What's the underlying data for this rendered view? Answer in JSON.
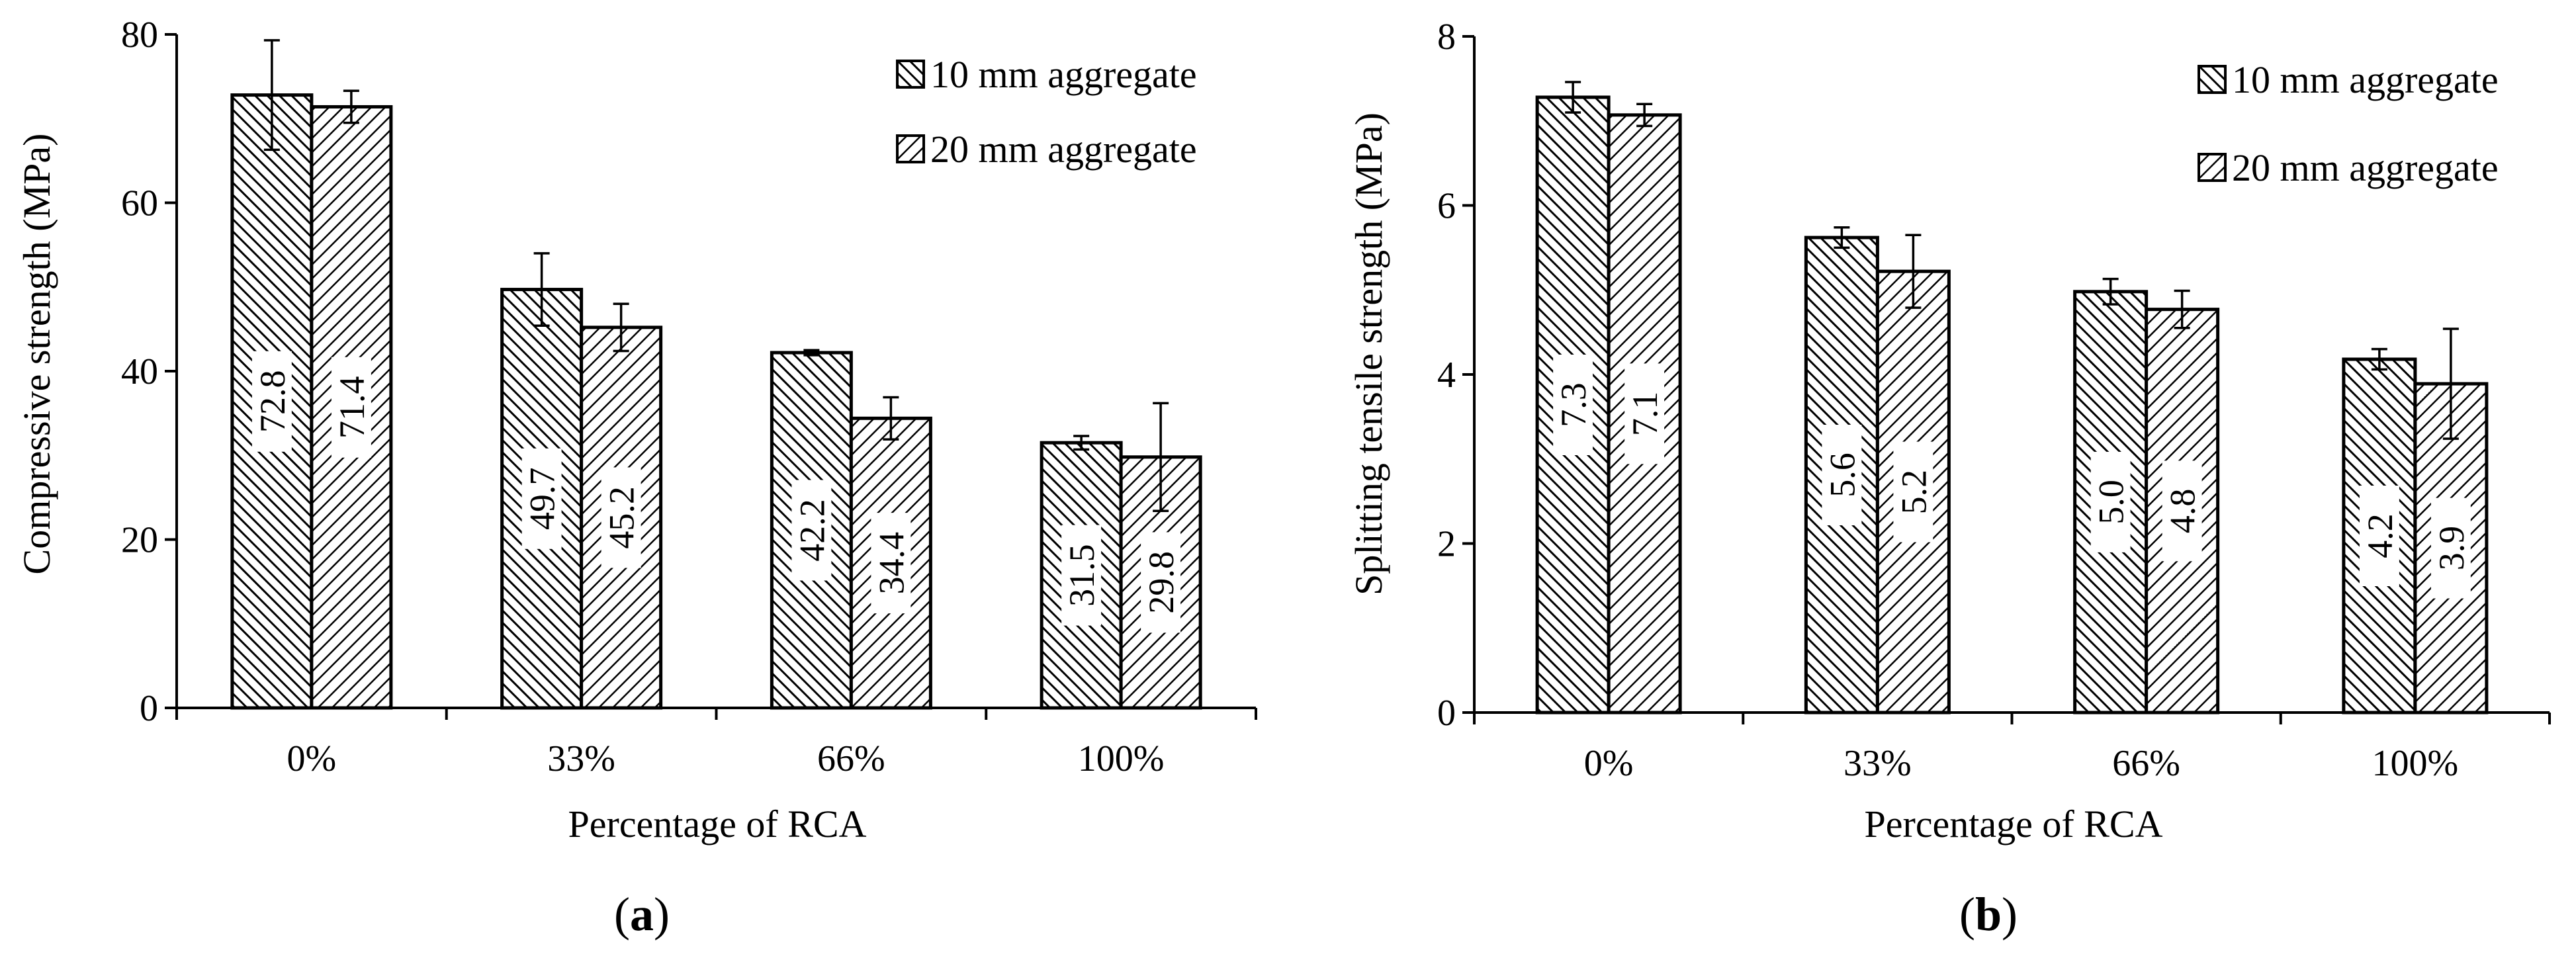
{
  "chart_data": [
    {
      "type": "bar",
      "panel_label": "a",
      "categories": [
        "0%",
        "33%",
        "66%",
        "100%"
      ],
      "xlabel": "Percentage of RCA",
      "ylabel": "Compressive strength (MPa)",
      "ylim": [
        0,
        80
      ],
      "yticks": [
        0,
        20,
        40,
        60,
        80
      ],
      "legend_position": "top-right",
      "series": [
        {
          "name": "10 mm aggregate",
          "pattern": "diagonal-dense",
          "values": [
            72.8,
            49.7,
            42.2,
            31.5
          ],
          "labels": [
            "72.8",
            "49.7",
            "42.2",
            "31.5"
          ],
          "error": [
            6.5,
            4.3,
            0.3,
            0.8
          ]
        },
        {
          "name": "20 mm aggregate",
          "pattern": "diagonal-sparse",
          "values": [
            71.4,
            45.2,
            34.4,
            29.8
          ],
          "labels": [
            "71.4",
            "45.2",
            "34.4",
            "29.8"
          ],
          "error": [
            1.9,
            2.8,
            2.5,
            6.4
          ]
        }
      ]
    },
    {
      "type": "bar",
      "panel_label": "b",
      "categories": [
        "0%",
        "33%",
        "66%",
        "100%"
      ],
      "xlabel": "Percentage of RCA",
      "ylabel": "Splitting tensile strength (MPa)",
      "ylim": [
        0,
        8
      ],
      "yticks": [
        0,
        2,
        4,
        6,
        8
      ],
      "legend_position": "top-right",
      "series": [
        {
          "name": "10 mm aggregate",
          "pattern": "diagonal-dense",
          "values": [
            7.28,
            5.62,
            4.98,
            4.18
          ],
          "labels": [
            "7.3",
            "5.6",
            "5.0",
            "4.2"
          ],
          "error": [
            0.18,
            0.12,
            0.15,
            0.12
          ]
        },
        {
          "name": "20 mm aggregate",
          "pattern": "diagonal-sparse",
          "values": [
            7.07,
            5.22,
            4.77,
            3.89
          ],
          "labels": [
            "7.1",
            "5.2",
            "4.8",
            "3.9"
          ],
          "error": [
            0.13,
            0.43,
            0.22,
            0.65
          ]
        }
      ]
    }
  ]
}
